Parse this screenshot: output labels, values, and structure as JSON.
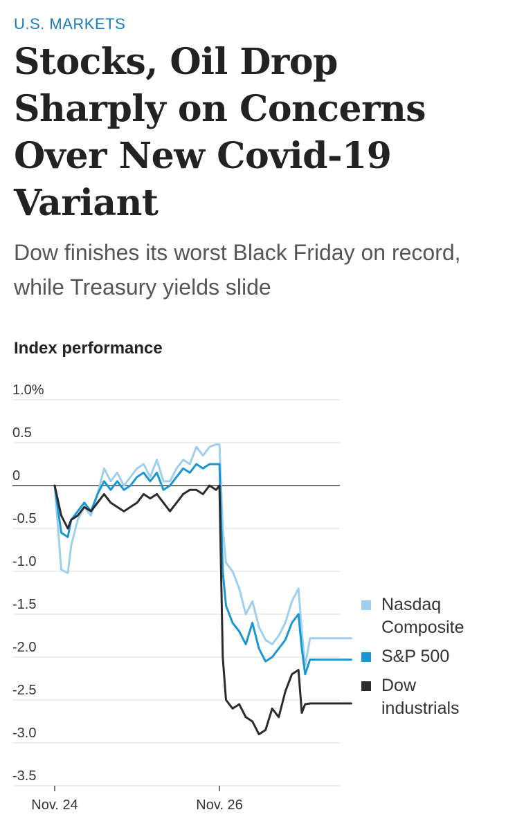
{
  "kicker": "U.S. MARKETS",
  "headline": "Stocks, Oil Drop Sharply on Concerns Over New Covid-19 Variant",
  "dek": "Dow finishes its worst Black Friday on record, while Treasury yields slide",
  "chart_data": {
    "type": "line",
    "title": "Index performance",
    "ylim": [
      -3.5,
      1.0
    ],
    "yticks": [
      "1.0%",
      "0.5",
      "0",
      "-0.5",
      "-1.0",
      "-1.5",
      "-2.0",
      "-2.5",
      "-3.0",
      "-3.5"
    ],
    "xticks": [
      "Nov. 24",
      "Nov. 26"
    ],
    "legend_position": "right",
    "series": [
      {
        "name": "Nasdaq Composite",
        "color": "#9fcfee",
        "x": [
          0,
          0.04,
          0.08,
          0.1,
          0.14,
          0.18,
          0.22,
          0.26,
          0.3,
          0.34,
          0.38,
          0.42,
          0.46,
          0.5,
          0.54,
          0.58,
          0.62,
          0.66,
          0.7,
          0.74,
          0.78,
          0.82,
          0.86,
          0.9,
          0.94,
          0.98,
          1.0,
          1.02,
          1.04,
          1.08,
          1.12,
          1.16,
          1.2,
          1.24,
          1.28,
          1.32,
          1.36,
          1.4,
          1.44,
          1.48,
          1.5,
          1.52,
          1.55,
          1.8
        ],
        "values": [
          0.0,
          -0.98,
          -1.02,
          -0.7,
          -0.4,
          -0.25,
          -0.35,
          -0.1,
          0.2,
          0.05,
          0.15,
          0.0,
          0.1,
          0.2,
          0.25,
          0.1,
          0.3,
          0.05,
          0.05,
          0.2,
          0.3,
          0.25,
          0.45,
          0.35,
          0.45,
          0.48,
          0.48,
          -0.5,
          -0.9,
          -1.0,
          -1.2,
          -1.5,
          -1.35,
          -1.65,
          -1.8,
          -1.85,
          -1.75,
          -1.6,
          -1.35,
          -1.2,
          -1.7,
          -2.1,
          -1.78,
          -1.78
        ]
      },
      {
        "name": "S&P 500",
        "color": "#1a96d4",
        "x": [
          0,
          0.04,
          0.08,
          0.1,
          0.14,
          0.18,
          0.22,
          0.26,
          0.3,
          0.34,
          0.38,
          0.42,
          0.46,
          0.5,
          0.54,
          0.58,
          0.62,
          0.66,
          0.7,
          0.74,
          0.78,
          0.82,
          0.86,
          0.9,
          0.94,
          0.98,
          1.0,
          1.02,
          1.04,
          1.08,
          1.12,
          1.16,
          1.2,
          1.24,
          1.28,
          1.32,
          1.36,
          1.4,
          1.44,
          1.48,
          1.5,
          1.52,
          1.55,
          1.8
        ],
        "values": [
          0.0,
          -0.55,
          -0.6,
          -0.4,
          -0.3,
          -0.2,
          -0.3,
          -0.1,
          0.05,
          -0.05,
          0.05,
          -0.05,
          0.0,
          0.1,
          0.15,
          0.05,
          0.15,
          -0.05,
          0.0,
          0.1,
          0.2,
          0.15,
          0.25,
          0.2,
          0.25,
          0.25,
          0.25,
          -1.0,
          -1.4,
          -1.6,
          -1.7,
          -1.85,
          -1.6,
          -1.9,
          -2.05,
          -2.0,
          -1.9,
          -1.8,
          -1.6,
          -1.5,
          -1.9,
          -2.2,
          -2.03,
          -2.03
        ]
      },
      {
        "name": "Dow industrials",
        "color": "#2b2b2b",
        "x": [
          0,
          0.04,
          0.08,
          0.1,
          0.14,
          0.18,
          0.22,
          0.26,
          0.3,
          0.34,
          0.38,
          0.42,
          0.46,
          0.5,
          0.54,
          0.58,
          0.62,
          0.66,
          0.7,
          0.74,
          0.78,
          0.82,
          0.86,
          0.9,
          0.94,
          0.98,
          1.0,
          1.02,
          1.04,
          1.08,
          1.12,
          1.16,
          1.2,
          1.24,
          1.28,
          1.32,
          1.36,
          1.4,
          1.44,
          1.48,
          1.5,
          1.52,
          1.55,
          1.8
        ],
        "values": [
          0.0,
          -0.35,
          -0.5,
          -0.4,
          -0.35,
          -0.25,
          -0.3,
          -0.2,
          -0.1,
          -0.2,
          -0.25,
          -0.3,
          -0.25,
          -0.2,
          -0.1,
          -0.15,
          -0.1,
          -0.2,
          -0.3,
          -0.2,
          -0.1,
          -0.05,
          -0.05,
          -0.1,
          0.0,
          -0.05,
          0.0,
          -2.0,
          -2.5,
          -2.6,
          -2.55,
          -2.7,
          -2.75,
          -2.9,
          -2.85,
          -2.6,
          -2.7,
          -2.4,
          -2.2,
          -2.15,
          -2.65,
          -2.55,
          -2.54,
          -2.54
        ]
      }
    ]
  }
}
